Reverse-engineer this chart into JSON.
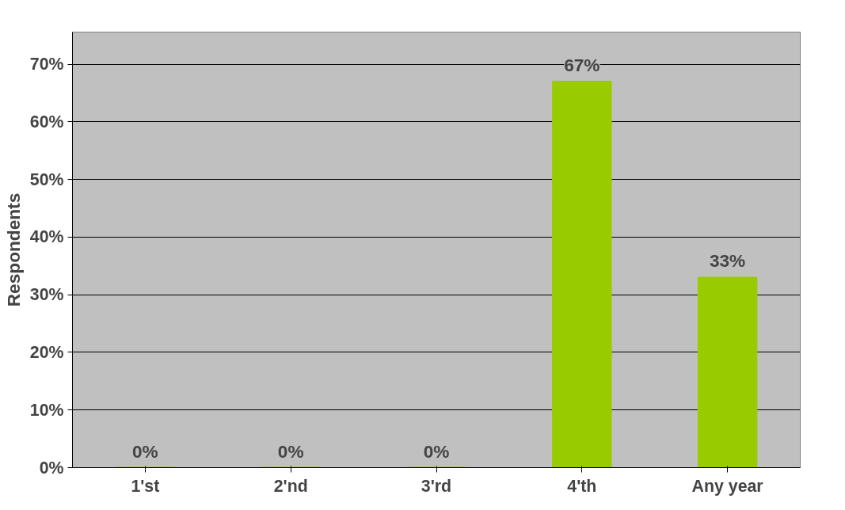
{
  "chart_data": {
    "type": "bar",
    "ylabel": "Respondents",
    "categories": [
      "1'st",
      "2'nd",
      "3'rd",
      "4'th",
      "Any year"
    ],
    "values": [
      0,
      0,
      0,
      67,
      33
    ],
    "color": "#99cc00",
    "value_labels": [
      "0%",
      "0%",
      "0%",
      "67%",
      "33%"
    ],
    "ylim": [
      0,
      70
    ],
    "yticks": [
      {
        "value": 0,
        "label": "0%"
      },
      {
        "value": 10,
        "label": "10%"
      },
      {
        "value": 20,
        "label": "20%"
      },
      {
        "value": 30,
        "label": "30%"
      },
      {
        "value": 40,
        "label": "40%"
      },
      {
        "value": 50,
        "label": "50%"
      },
      {
        "value": 60,
        "label": "60%"
      },
      {
        "value": 70,
        "label": "70%"
      }
    ],
    "grid": "y"
  }
}
